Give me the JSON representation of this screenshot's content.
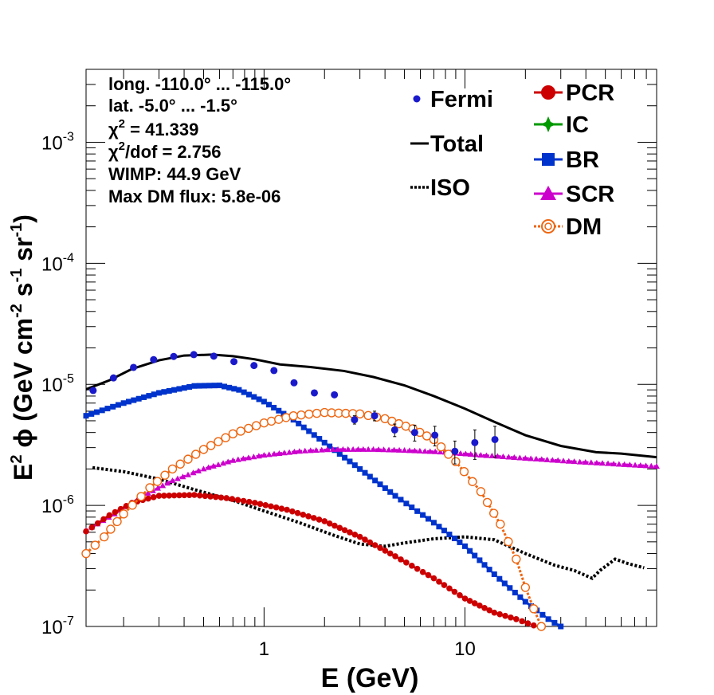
{
  "chart_data": {
    "type": "line",
    "xscale": "log",
    "yscale": "log",
    "xlim": [
      0.13,
      90
    ],
    "ylim": [
      1e-07,
      0.004
    ],
    "xlabel": "E (GeV)",
    "ylabel_parts": {
      "e": "E",
      "two": "2",
      "phi": " ϕ (GeV cm",
      "m2": "-2",
      "s": " s",
      "m1a": "-1",
      "sr": " sr",
      "m1b": "-1",
      "close": ")"
    },
    "x_ticks": [
      {
        "v": 1,
        "label": "1"
      },
      {
        "v": 10,
        "label": "10"
      }
    ],
    "y_ticks": [
      {
        "v": 1e-07,
        "base": "10",
        "exp": "-7"
      },
      {
        "v": 1e-06,
        "base": "10",
        "exp": "-6"
      },
      {
        "v": 1e-05,
        "base": "10",
        "exp": "-5"
      },
      {
        "v": 0.0001,
        "base": "10",
        "exp": "-4"
      },
      {
        "v": 0.001,
        "base": "10",
        "exp": "-3"
      }
    ],
    "annotations": {
      "long": "long. -110.0° ... -115.0°",
      "lat": "lat. -5.0° ... -1.5°",
      "chi_sym": "χ",
      "chi_sup": "2",
      "chi_val": " = 41.339",
      "chidof_val": "/dof = 2.756",
      "wimp": "WIMP: 44.9 GeV",
      "maxdm": "Max DM flux: 5.8e-06"
    },
    "legend": {
      "fermi": "Fermi",
      "total": "Total",
      "iso": "ISO",
      "pcr": "PCR",
      "ic": "IC",
      "br": "BR",
      "scr": "SCR",
      "dm": "DM"
    },
    "colors": {
      "fermi": "#1a1acc",
      "total": "#000000",
      "iso": "#000000",
      "pcr": "#cc0000",
      "ic": "#009900",
      "br": "#0033cc",
      "scr": "#cc00cc",
      "dm": "#ee6611"
    },
    "fermi": [
      {
        "x": 0.141,
        "y": 8.9e-06,
        "err": 3e-07
      },
      {
        "x": 0.178,
        "y": 1.13e-05,
        "err": 3e-07
      },
      {
        "x": 0.224,
        "y": 1.38e-05,
        "err": 3e-07
      },
      {
        "x": 0.282,
        "y": 1.6e-05,
        "err": 3e-07
      },
      {
        "x": 0.355,
        "y": 1.7e-05,
        "err": 3e-07
      },
      {
        "x": 0.447,
        "y": 1.76e-05,
        "err": 3e-07
      },
      {
        "x": 0.562,
        "y": 1.71e-05,
        "err": 3e-07
      },
      {
        "x": 0.708,
        "y": 1.54e-05,
        "err": 3e-07
      },
      {
        "x": 0.891,
        "y": 1.43e-05,
        "err": 3e-07
      },
      {
        "x": 1.12,
        "y": 1.3e-05,
        "err": 3e-07
      },
      {
        "x": 1.41,
        "y": 1.03e-05,
        "err": 3e-07
      },
      {
        "x": 1.78,
        "y": 8.5e-06,
        "err": 3e-07
      },
      {
        "x": 2.24,
        "y": 8.2e-06,
        "err": 3e-07
      },
      {
        "x": 2.82,
        "y": 5.1e-06,
        "err": 4e-07
      },
      {
        "x": 3.55,
        "y": 5.5e-06,
        "err": 5e-07
      },
      {
        "x": 4.47,
        "y": 4.2e-06,
        "err": 5e-07
      },
      {
        "x": 5.62,
        "y": 4e-06,
        "err": 6e-07
      },
      {
        "x": 7.08,
        "y": 3.8e-06,
        "err": 7e-07
      },
      {
        "x": 8.91,
        "y": 2.8e-06,
        "err": 6e-07
      },
      {
        "x": 11.2,
        "y": 3.3e-06,
        "err": 9e-07
      },
      {
        "x": 14.1,
        "y": 3.5e-06,
        "err": 1e-06
      }
    ],
    "series": [
      {
        "name": "Total",
        "style": "solid",
        "values": [
          [
            0.13,
            9.1e-06
          ],
          [
            0.17,
            1.08e-05
          ],
          [
            0.22,
            1.34e-05
          ],
          [
            0.3,
            1.58e-05
          ],
          [
            0.4,
            1.73e-05
          ],
          [
            0.55,
            1.76e-05
          ],
          [
            0.7,
            1.71e-05
          ],
          [
            0.9,
            1.61e-05
          ],
          [
            1.2,
            1.46e-05
          ],
          [
            1.7,
            1.39e-05
          ],
          [
            2.5,
            1.29e-05
          ],
          [
            3.5,
            1.15e-05
          ],
          [
            5,
            9.8e-06
          ],
          [
            7,
            8e-06
          ],
          [
            10,
            6.3e-06
          ],
          [
            14,
            4.9e-06
          ],
          [
            20,
            3.8e-06
          ],
          [
            30,
            3.1e-06
          ],
          [
            45,
            2.75e-06
          ],
          [
            60,
            2.68e-06
          ],
          [
            90,
            2.5e-06
          ]
        ]
      },
      {
        "name": "ISO",
        "style": "dotted",
        "values": [
          [
            0.14,
            2.05e-06
          ],
          [
            0.2,
            1.9e-06
          ],
          [
            0.3,
            1.65e-06
          ],
          [
            0.45,
            1.35e-06
          ],
          [
            0.7,
            1.1e-06
          ],
          [
            1.0,
            9e-07
          ],
          [
            1.5,
            7.2e-07
          ],
          [
            2.2,
            5.7e-07
          ],
          [
            3.0,
            4.8e-07
          ],
          [
            4.0,
            4.6e-07
          ],
          [
            5.0,
            4.9e-07
          ],
          [
            7.0,
            5.3e-07
          ],
          [
            10,
            5.5e-07
          ],
          [
            14,
            5.2e-07
          ],
          [
            20,
            4e-07
          ],
          [
            28,
            3.2e-07
          ],
          [
            35,
            2.9e-07
          ],
          [
            43,
            2.5e-07
          ],
          [
            47,
            2.9e-07
          ],
          [
            56,
            3.6e-07
          ],
          [
            65,
            3.3e-07
          ],
          [
            78,
            3.05e-07
          ]
        ]
      },
      {
        "name": "BR",
        "style": "square",
        "values": [
          [
            0.13,
            5.5e-06
          ],
          [
            0.2,
            7e-06
          ],
          [
            0.3,
            8.5e-06
          ],
          [
            0.45,
            9.7e-06
          ],
          [
            0.6,
            9.8e-06
          ],
          [
            0.75,
            9e-06
          ],
          [
            1.0,
            7.2e-06
          ],
          [
            1.4,
            5.1e-06
          ],
          [
            2.0,
            3.3e-06
          ],
          [
            3.0,
            2e-06
          ],
          [
            4.5,
            1.2e-06
          ],
          [
            7,
            7.2e-07
          ],
          [
            10,
            4.6e-07
          ],
          [
            14,
            2.7e-07
          ],
          [
            20,
            1.6e-07
          ],
          [
            26,
            1.15e-07
          ],
          [
            30,
            1e-07
          ]
        ]
      },
      {
        "name": "SCR",
        "style": "triangle",
        "values": [
          [
            0.13,
            6.2e-07
          ],
          [
            0.18,
            8.5e-07
          ],
          [
            0.25,
            1.2e-06
          ],
          [
            0.35,
            1.6e-06
          ],
          [
            0.5,
            2e-06
          ],
          [
            0.7,
            2.35e-06
          ],
          [
            1.0,
            2.6e-06
          ],
          [
            1.5,
            2.8e-06
          ],
          [
            2.2,
            2.9e-06
          ],
          [
            3.5,
            2.9e-06
          ],
          [
            5,
            2.85e-06
          ],
          [
            8,
            2.75e-06
          ],
          [
            12,
            2.6e-06
          ],
          [
            20,
            2.45e-06
          ],
          [
            35,
            2.3e-06
          ],
          [
            55,
            2.2e-06
          ],
          [
            90,
            2.1e-06
          ]
        ]
      },
      {
        "name": "PCR",
        "style": "circle",
        "values": [
          [
            0.13,
            6.1e-07
          ],
          [
            0.17,
            8.3e-07
          ],
          [
            0.22,
            1.05e-06
          ],
          [
            0.3,
            1.2e-06
          ],
          [
            0.45,
            1.22e-06
          ],
          [
            0.65,
            1.15e-06
          ],
          [
            0.9,
            1.05e-06
          ],
          [
            1.3,
            9.2e-07
          ],
          [
            2.0,
            7.4e-07
          ],
          [
            3.0,
            5.5e-07
          ],
          [
            4.5,
            3.8e-07
          ],
          [
            7,
            2.5e-07
          ],
          [
            10,
            1.7e-07
          ],
          [
            14,
            1.3e-07
          ],
          [
            18,
            1.15e-07
          ],
          [
            22,
            1.02e-07
          ]
        ]
      },
      {
        "name": "DM",
        "style": "ring",
        "values": [
          [
            0.13,
            4e-07
          ],
          [
            0.16,
            5.5e-07
          ],
          [
            0.2,
            8.5e-07
          ],
          [
            0.27,
            1.4e-06
          ],
          [
            0.35,
            2e-06
          ],
          [
            0.5,
            2.9e-06
          ],
          [
            0.7,
            3.9e-06
          ],
          [
            1.0,
            4.8e-06
          ],
          [
            1.4,
            5.5e-06
          ],
          [
            2.0,
            5.85e-06
          ],
          [
            3.0,
            5.7e-06
          ],
          [
            4.0,
            5.2e-06
          ],
          [
            5.5,
            4.3e-06
          ],
          [
            7,
            3.5e-06
          ],
          [
            9,
            2.3e-06
          ],
          [
            12,
            1.3e-06
          ],
          [
            15,
            7e-07
          ],
          [
            18,
            3.6e-07
          ],
          [
            20,
            2.1e-07
          ],
          [
            22,
            1.4e-07
          ],
          [
            24,
            1e-07
          ]
        ]
      }
    ]
  }
}
